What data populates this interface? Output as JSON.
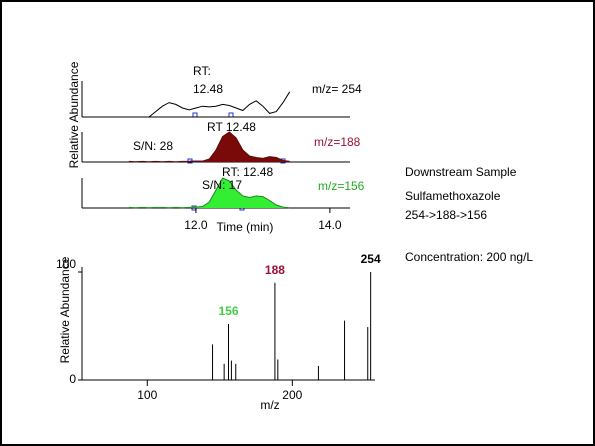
{
  "chart_data": [
    {
      "type": "line",
      "y_label": "Relative Abundance",
      "x_label": "Time (min)",
      "x": [
        11.0,
        11.1,
        11.2,
        11.3,
        11.4,
        11.5,
        11.6,
        11.7,
        11.8,
        11.9,
        12.0,
        12.1,
        12.2,
        12.3,
        12.4,
        12.5,
        12.6,
        12.7,
        12.8,
        12.9,
        13.0,
        13.1,
        13.2,
        13.3,
        13.4
      ],
      "xlim": [
        10.3,
        14.3
      ],
      "xticks": [
        {
          "value": 12.0,
          "label": "12.0"
        },
        {
          "value": 14.0,
          "label": "14.0"
        }
      ],
      "ylim": [
        0,
        100
      ],
      "series": [
        {
          "name": "m/z= 254",
          "color": "#000000",
          "fill": "none",
          "label_color": "#000000",
          "annotations": [
            "RT:",
            "12.48"
          ],
          "values": [
            null,
            null,
            null,
            0,
            15,
            30,
            40,
            35,
            25,
            20,
            25,
            30,
            28,
            30,
            35,
            32,
            25,
            18,
            35,
            45,
            30,
            10,
            15,
            40,
            70
          ]
        },
        {
          "name": "m/z=188",
          "color": "#5a0a0a",
          "fill": "#7a0a0a",
          "label_color": "#9b1030",
          "annotations": [
            "S/N: 28",
            "RT 12.48"
          ],
          "values": [
            2,
            1,
            2,
            1,
            2,
            1,
            2,
            1,
            2,
            2,
            2,
            3,
            10,
            40,
            85,
            100,
            80,
            40,
            20,
            15,
            12,
            18,
            15,
            5,
            2
          ]
        },
        {
          "name": "m/z=156",
          "color": "#1a8a1a",
          "fill": "#33ee33",
          "label_color": "#22aa22",
          "annotations": [
            "S/N: 17",
            "RT: 12.48"
          ],
          "values": [
            2,
            1,
            2,
            1,
            2,
            2,
            1,
            2,
            1,
            2,
            3,
            5,
            20,
            60,
            100,
            90,
            60,
            40,
            35,
            40,
            38,
            25,
            10,
            3,
            1
          ]
        }
      ]
    },
    {
      "type": "stem",
      "y_label": "Relative Abundance",
      "x_label": "m/z",
      "x": [
        145,
        153,
        156,
        158,
        161,
        188,
        190,
        218,
        236,
        252,
        254
      ],
      "values": [
        33,
        15,
        52,
        18,
        15,
        90,
        19,
        13,
        55,
        49,
        100
      ],
      "color": "#000000",
      "xlim": [
        55,
        257
      ],
      "xticks": [
        100,
        200
      ],
      "ylim": [
        0,
        100
      ],
      "yticks": [
        0,
        100
      ],
      "peak_labels": [
        {
          "x": 156,
          "color": "#44cc44"
        },
        {
          "x": 188,
          "color": "#9b1030"
        },
        {
          "x": 254,
          "color": "#000000"
        }
      ]
    }
  ],
  "sample_info": [
    "Downstream Sample",
    "Sulfamethoxazole",
    "254->188->156",
    "Concentration: 200 ng/L"
  ]
}
